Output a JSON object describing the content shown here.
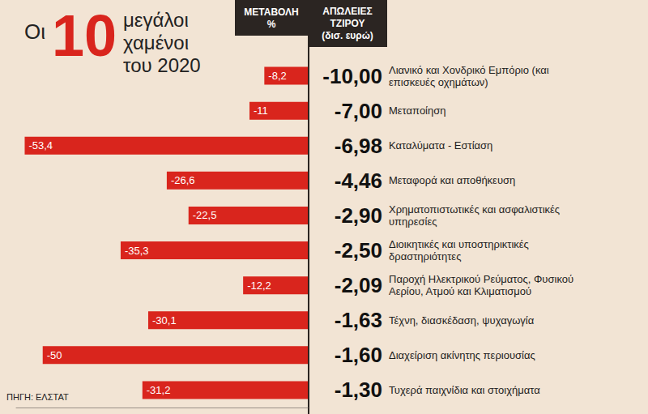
{
  "chart_data": {
    "type": "bar",
    "orientation": "horizontal",
    "title": "Οι 10 μεγάλοι χαμένοι του 2020",
    "source": "ΠΗΓΗ: ΕΛΣΤΑΤ",
    "column_headers": [
      "ΜΕΤΑΒΟΛΗ %",
      "ΑΠΩΛΕΙΕΣ ΤΖΙΡΟΥ (δισ. ευρώ)"
    ],
    "categories": [
      "Λιανικό και Χονδρικό Εμπόριο (και επισκευές οχημάτων)",
      "Μεταποίηση",
      "Καταλύματα - Εστίαση",
      "Μεταφορά και αποθήκευση",
      "Χρηματοπιστωτικές και ασφαλιστικές υπηρεσίες",
      "Διοικητικές και υποστηρικτικές δραστηριότητες",
      "Παροχή Ηλεκτρικού Ρεύματος, Φυσικού Αερίου, Ατμού και Κλιματισμού",
      "Τέχνη, διασκέδαση, ψυχαγωγία",
      "Διαχείριση ακίνητης περιουσίας",
      "Τυχερά παιχνίδια και στοιχήματα"
    ],
    "values": [
      -8.2,
      -11,
      -53.4,
      -26.6,
      -22.5,
      -35.3,
      -12.2,
      -30.1,
      -50,
      -31.2
    ],
    "value_labels": [
      "-8,2",
      "-11",
      "-53,4",
      "-26,6",
      "-22,5",
      "-35,3",
      "-12,2",
      "-30,1",
      "-50",
      "-31,2"
    ],
    "losses": [
      -10.0,
      -7.0,
      -6.98,
      -4.46,
      -2.9,
      -2.5,
      -2.09,
      -1.63,
      -1.6,
      -1.3
    ],
    "loss_labels": [
      "-10,00",
      "-7,00",
      "-6,98",
      "-4,46",
      "-2,90",
      "-2,50",
      "-2,09",
      "-1,63",
      "-1,60",
      "-1,30"
    ],
    "color": "#d9251d",
    "xlim": [
      -55,
      0
    ],
    "xticks": [],
    "tick_labels": false,
    "grid": false,
    "data_labels": true
  }
}
